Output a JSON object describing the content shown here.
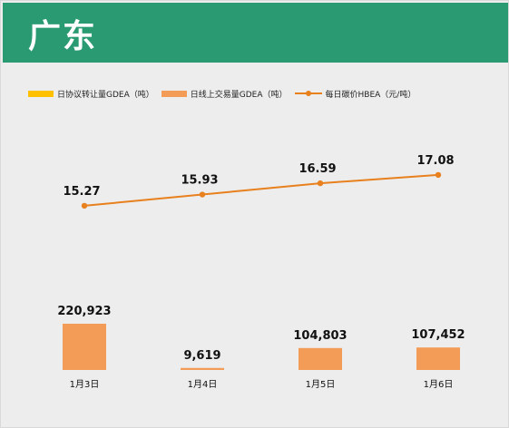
{
  "header": {
    "title": "广东"
  },
  "colors": {
    "header_bg": "#2a9a72",
    "bar": "#f39c58",
    "line": "#e8801e",
    "agreement": "#ffc000"
  },
  "legend": [
    {
      "label": "日协议转让量GDEA（吨）",
      "kind": "bar",
      "color": "#ffc000"
    },
    {
      "label": "日线上交易量GDEA（吨）",
      "kind": "bar",
      "color": "#f39c58"
    },
    {
      "label": "每日碳价HBEA（元/吨）",
      "kind": "line",
      "color": "#e8801e"
    }
  ],
  "chart_data": {
    "type": "bar",
    "categories": [
      "1月3日",
      "1月4日",
      "1月5日",
      "1月6日"
    ],
    "series": [
      {
        "name": "日协议转让量GDEA（吨）",
        "type": "bar",
        "values": [
          0,
          0,
          0,
          0
        ]
      },
      {
        "name": "日线上交易量GDEA（吨）",
        "type": "bar",
        "values": [
          220923,
          9619,
          104803,
          107452
        ]
      },
      {
        "name": "每日碳价HBEA（元/吨）",
        "type": "line",
        "values": [
          15.27,
          15.93,
          16.59,
          17.08
        ]
      }
    ],
    "bar_labels": [
      "220,923",
      "9,619",
      "104,803",
      "107,452"
    ],
    "line_labels": [
      "15.27",
      "15.93",
      "16.59",
      "17.08"
    ],
    "legend_position": "top-left",
    "grid": false
  }
}
